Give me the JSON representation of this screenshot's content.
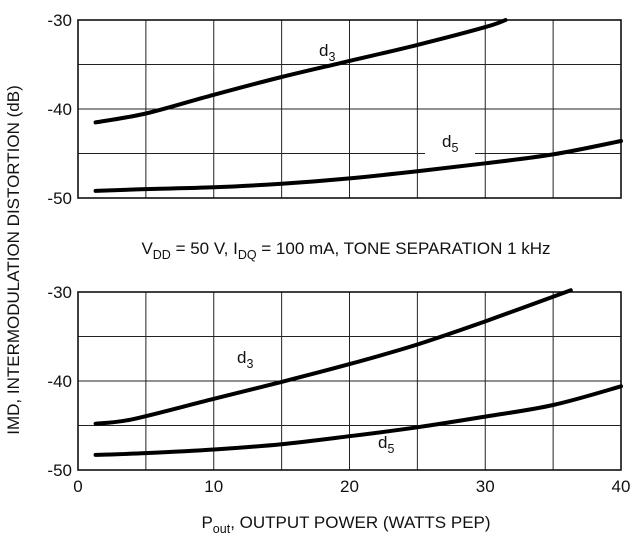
{
  "chart_data": [
    {
      "type": "line",
      "panel": "top",
      "ylim": [
        -50,
        -30
      ],
      "xlim": [
        0,
        40
      ],
      "yticks": [
        "-30",
        "-40",
        "-50"
      ],
      "grid": true,
      "series": [
        {
          "name": "d3",
          "x": [
            1.3,
            5,
            10,
            15,
            20,
            25,
            30,
            31.5
          ],
          "y": [
            -41.5,
            -40.5,
            -38.4,
            -36.4,
            -34.6,
            -32.8,
            -30.8,
            -30
          ]
        },
        {
          "name": "d5",
          "x": [
            1.3,
            5,
            10,
            15,
            20,
            25,
            30,
            35,
            40
          ],
          "y": [
            -49.2,
            -49.0,
            -48.8,
            -48.4,
            -47.8,
            -47.0,
            -46.1,
            -45.1,
            -43.6
          ]
        }
      ]
    },
    {
      "type": "line",
      "panel": "bottom",
      "ylim": [
        -50,
        -30
      ],
      "xlim": [
        0,
        40
      ],
      "yticks": [
        "-30",
        "-40",
        "-50"
      ],
      "xticks": [
        "0",
        "10",
        "20",
        "30",
        "40"
      ],
      "grid": true,
      "series": [
        {
          "name": "d3",
          "x": [
            1.3,
            4,
            10,
            15,
            20,
            25,
            30,
            36.3
          ],
          "y": [
            -44.8,
            -44.3,
            -42.0,
            -40.1,
            -38.1,
            -35.9,
            -33.3,
            -29.8
          ]
        },
        {
          "name": "d5",
          "x": [
            1.3,
            5,
            10,
            15,
            20,
            25,
            30,
            35,
            40
          ],
          "y": [
            -48.3,
            -48.1,
            -47.7,
            -47.1,
            -46.2,
            -45.2,
            -44.0,
            -42.7,
            -40.6
          ]
        }
      ]
    }
  ],
  "labels": {
    "ylabel": "IMD, INTERMODULATION DISTORTION (dB)",
    "xlabel_main": "P",
    "xlabel_sub": "out",
    "xlabel_rest": ", OUTPUT POWER (WATTS PEP)",
    "cond_v": "V",
    "cond_v_sub": "DD",
    "cond_mid": " = 50 V, I",
    "cond_i_sub": "DQ",
    "cond_rest": " = 100 mA, TONE SEPARATION 1 kHz",
    "d_letter": "d",
    "d3_sub": "3",
    "d5_sub": "5"
  }
}
